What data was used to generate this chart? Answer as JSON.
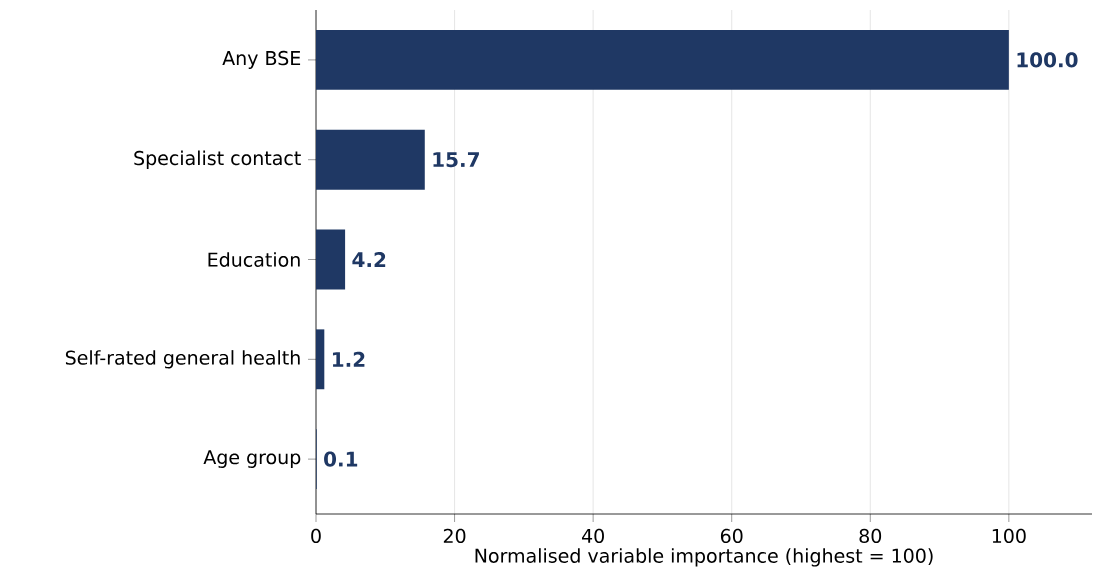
{
  "chart_data": {
    "type": "bar",
    "orientation": "horizontal",
    "xlabel": "Normalised variable importance (highest = 100)",
    "categories": [
      "Any BSE",
      "Specialist contact",
      "Education",
      "Self-rated general health",
      "Age group"
    ],
    "values": [
      100,
      15.7,
      4.2,
      1.2,
      0.1
    ],
    "value_labels": [
      "100.0",
      "15.7",
      "4.2",
      "1.2",
      "0.1"
    ],
    "color": "#1f3864",
    "xlim": [
      0,
      112
    ],
    "xticks": [
      0,
      20,
      40,
      60,
      80,
      100
    ],
    "grid": "x"
  }
}
